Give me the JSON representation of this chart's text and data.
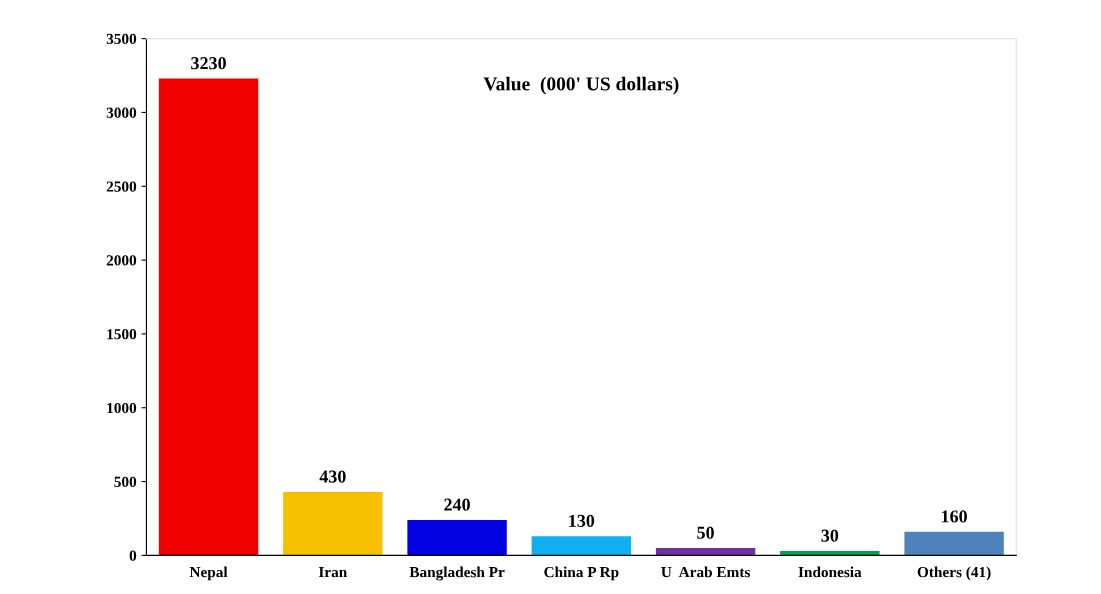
{
  "chart_data": {
    "type": "bar",
    "title": "Value  (000' US dollars)",
    "categories": [
      "Nepal",
      "Iran",
      "Bangladesh Pr",
      "China P Rp",
      "U  Arab Emts",
      "Indonesia",
      "Others (41)"
    ],
    "values": [
      3230,
      430,
      240,
      130,
      50,
      30,
      160
    ],
    "colors": [
      "#f00000",
      "#f5c000",
      "#0000e0",
      "#10b0f0",
      "#7030a0",
      "#00a050",
      "#4f81bd"
    ],
    "ylim": [
      0,
      3500
    ],
    "yticks": [
      0,
      500,
      1000,
      1500,
      2000,
      2500,
      3000,
      3500
    ],
    "data_labels": true,
    "grid": false
  }
}
